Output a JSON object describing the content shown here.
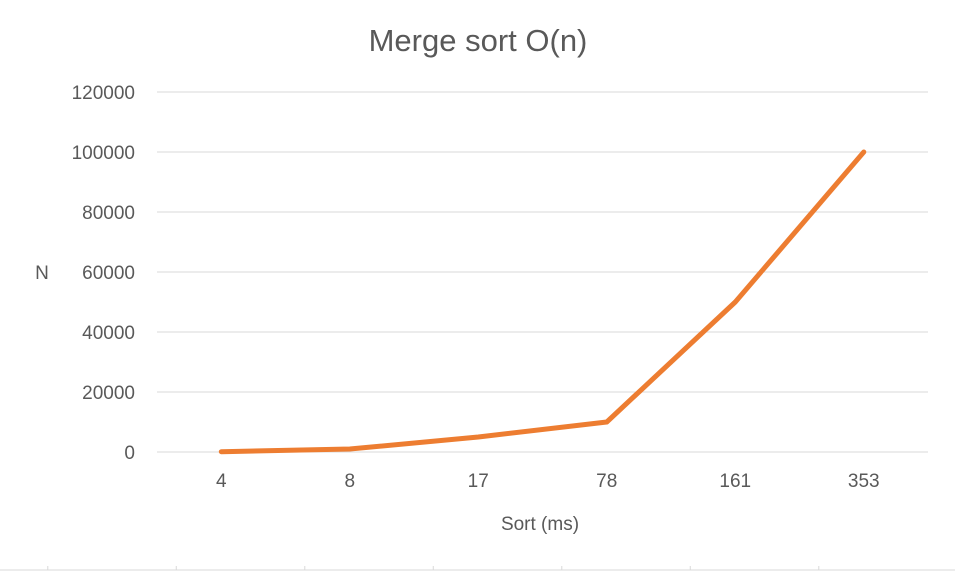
{
  "chart_data": {
    "type": "line",
    "title": "Merge sort O(n)",
    "xlabel": "Sort (ms)",
    "ylabel": "N",
    "categories": [
      "4",
      "8",
      "17",
      "78",
      "161",
      "353"
    ],
    "series": [
      {
        "values": [
          100,
          1000,
          5000,
          10000,
          50000,
          100000
        ]
      }
    ],
    "y_ticks": [
      "0",
      "20000",
      "40000",
      "60000",
      "80000",
      "100000",
      "120000"
    ],
    "ylim": [
      0,
      120000
    ],
    "grid": true,
    "legend": "none",
    "colors": {
      "line": "#ED7D31",
      "grid": "#D9D9D9",
      "text": "#595959"
    }
  }
}
